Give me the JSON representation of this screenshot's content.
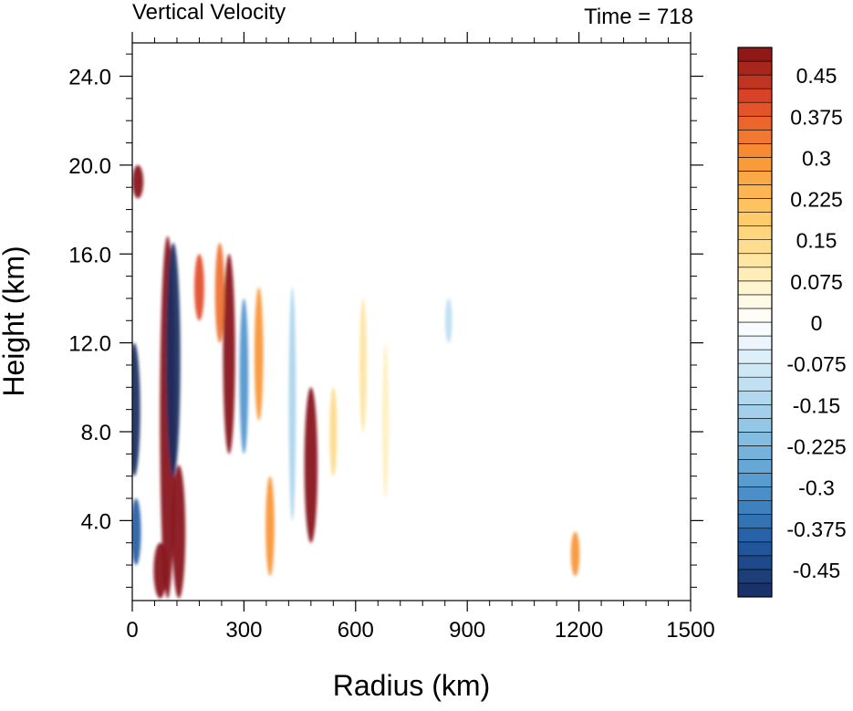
{
  "chart_data": {
    "type": "heatmap",
    "title": "Vertical Velocity",
    "subtitle": "Time = 718",
    "xlabel": "Radius (km)",
    "ylabel": "Height (km)",
    "xlim": [
      0,
      1500
    ],
    "ylim": [
      0.4,
      25.5
    ],
    "x_ticks": [
      0,
      300,
      600,
      900,
      1200,
      1500
    ],
    "y_ticks": [
      4.0,
      8.0,
      12.0,
      16.0,
      20.0,
      24.0
    ],
    "x_tick_labels": [
      "0",
      "300",
      "600",
      "900",
      "1200",
      "1500"
    ],
    "y_tick_labels": [
      "4.0",
      "8.0",
      "12.0",
      "16.0",
      "20.0",
      "24.0"
    ],
    "colorbar": {
      "levels": [
        -0.5,
        -0.475,
        -0.45,
        -0.425,
        -0.4,
        -0.375,
        -0.35,
        -0.325,
        -0.3,
        -0.275,
        -0.25,
        -0.225,
        -0.2,
        -0.175,
        -0.15,
        -0.125,
        -0.1,
        -0.075,
        -0.05,
        -0.025,
        0,
        0.025,
        0.05,
        0.075,
        0.1,
        0.125,
        0.15,
        0.175,
        0.2,
        0.225,
        0.25,
        0.275,
        0.3,
        0.325,
        0.35,
        0.375,
        0.4,
        0.425,
        0.45,
        0.475,
        0.5
      ],
      "labels": [
        "0.45",
        "0.375",
        "0.3",
        "0.225",
        "0.15",
        "0.075",
        "0",
        "-0.075",
        "-0.15",
        "-0.225",
        "-0.3",
        "-0.375",
        "-0.45"
      ],
      "label_values": [
        0.45,
        0.375,
        0.3,
        0.225,
        0.15,
        0.075,
        0,
        -0.075,
        -0.15,
        -0.225,
        -0.3,
        -0.375,
        -0.45
      ]
    },
    "features": [
      {
        "r": 95,
        "z0": 0.5,
        "z1": 16.8,
        "w": 0.9
      },
      {
        "r": 110,
        "z0": 6.0,
        "z1": 16.5,
        "w": -0.8
      },
      {
        "r": 125,
        "z0": 0.5,
        "z1": 6.5,
        "w": 0.7
      },
      {
        "r": 75,
        "z0": 0.5,
        "z1": 3.0,
        "w": 0.7
      },
      {
        "r": 5,
        "z0": 6.0,
        "z1": 12.0,
        "w": -0.6
      },
      {
        "r": 10,
        "z0": 2.0,
        "z1": 5.0,
        "w": -0.4
      },
      {
        "r": 15,
        "z0": 18.5,
        "z1": 20.0,
        "w": 0.5
      },
      {
        "r": 260,
        "z0": 7.0,
        "z1": 16.0,
        "w": 0.6
      },
      {
        "r": 235,
        "z0": 12.0,
        "z1": 16.5,
        "w": 0.35
      },
      {
        "r": 180,
        "z0": 13.0,
        "z1": 16.0,
        "w": 0.4
      },
      {
        "r": 340,
        "z0": 8.5,
        "z1": 14.5,
        "w": 0.3
      },
      {
        "r": 300,
        "z0": 7.0,
        "z1": 14.0,
        "w": -0.3
      },
      {
        "r": 370,
        "z0": 1.5,
        "z1": 6.0,
        "w": 0.3
      },
      {
        "r": 480,
        "z0": 3.0,
        "z1": 10.0,
        "w": 0.7
      },
      {
        "r": 430,
        "z0": 4.0,
        "z1": 14.5,
        "w": -0.15
      },
      {
        "r": 540,
        "z0": 6.0,
        "z1": 10.0,
        "w": 0.15
      },
      {
        "r": 620,
        "z0": 8.0,
        "z1": 14.0,
        "w": 0.12
      },
      {
        "r": 680,
        "z0": 5.0,
        "z1": 12.0,
        "w": 0.08
      },
      {
        "r": 850,
        "z0": 12.0,
        "z1": 14.0,
        "w": -0.12
      },
      {
        "r": 1190,
        "z0": 1.5,
        "z1": 3.5,
        "w": 0.3
      }
    ]
  }
}
